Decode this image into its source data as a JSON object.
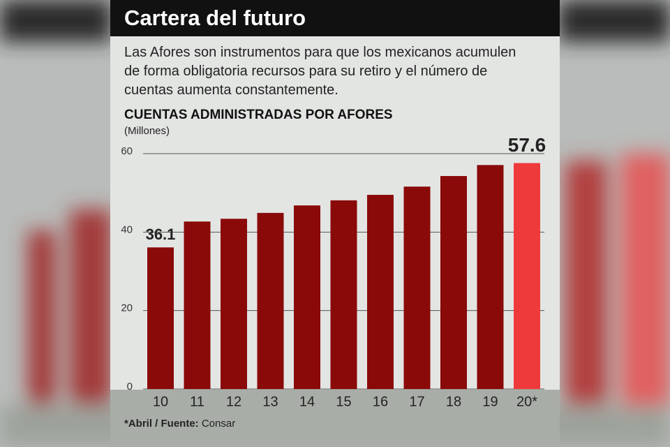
{
  "chart_data": {
    "type": "bar",
    "title": "Cartera del futuro",
    "subtitle": "Las Afores son instrumentos para que los mexicanos acumulen de forma obligatoria recursos para su retiro y el número de cuentas aumenta constantemente.",
    "chart_title": "CUENTAS ADMINISTRADAS POR AFORES",
    "y_label": "(Millones)",
    "categories": [
      "10",
      "11",
      "12",
      "13",
      "14",
      "15",
      "16",
      "17",
      "18",
      "19",
      "20*"
    ],
    "values": [
      36.1,
      42.7,
      43.4,
      44.9,
      46.8,
      48.1,
      49.5,
      51.6,
      54.3,
      57.1,
      57.6
    ],
    "value_labels": [
      "36.1",
      null,
      null,
      null,
      null,
      null,
      null,
      null,
      null,
      null,
      "57.6"
    ],
    "colors": [
      "#8a0a0a",
      "#8a0a0a",
      "#8a0a0a",
      "#8a0a0a",
      "#8a0a0a",
      "#8a0a0a",
      "#8a0a0a",
      "#8a0a0a",
      "#8a0a0a",
      "#8a0a0a",
      "#ee3a3a"
    ],
    "ylim": [
      0,
      60
    ],
    "yticks": [
      0,
      20,
      40,
      60
    ],
    "grid": true,
    "note_label": "*Abril / Fuente:",
    "source": "Consar"
  }
}
